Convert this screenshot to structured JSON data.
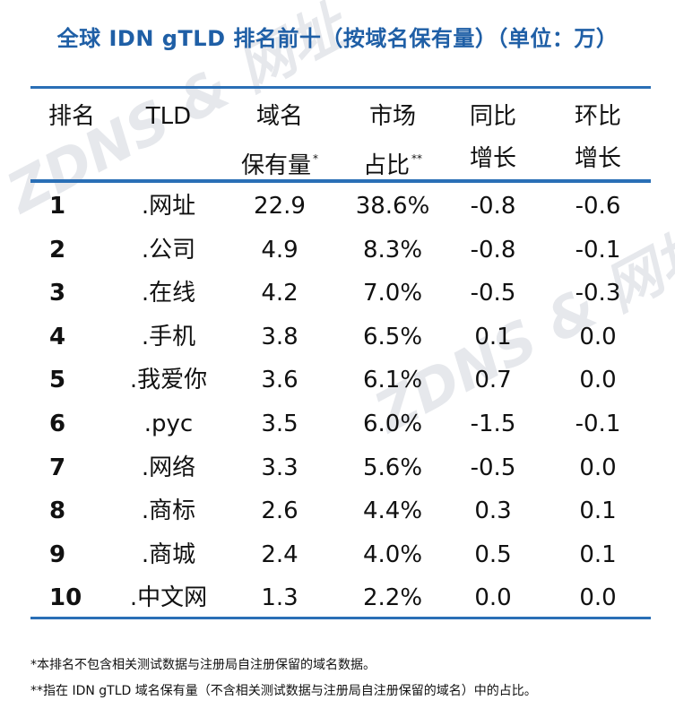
{
  "chart_data": {
    "type": "table",
    "title": "全球 IDN gTLD 排名前十（按域名保有量）（单位：万）",
    "columns": [
      {
        "line1": "排名",
        "line2": "",
        "mark": ""
      },
      {
        "line1": "TLD",
        "line2": "",
        "mark": ""
      },
      {
        "line1": "域名",
        "line2": "保有量",
        "mark": "*"
      },
      {
        "line1": "市场",
        "line2": "占比",
        "mark": "**"
      },
      {
        "line1": "同比",
        "line2": "增长",
        "mark": ""
      },
      {
        "line1": "环比",
        "line2": "增长",
        "mark": ""
      }
    ],
    "rows": [
      {
        "rank": "1",
        "tld": ".网址",
        "holdings": "22.9",
        "share": "38.6%",
        "yoy": "-0.8",
        "mom": "-0.6"
      },
      {
        "rank": "2",
        "tld": ".公司",
        "holdings": "4.9",
        "share": "8.3%",
        "yoy": "-0.8",
        "mom": "-0.1"
      },
      {
        "rank": "3",
        "tld": ".在线",
        "holdings": "4.2",
        "share": "7.0%",
        "yoy": "-0.5",
        "mom": "-0.3"
      },
      {
        "rank": "4",
        "tld": ".手机",
        "holdings": "3.8",
        "share": "6.5%",
        "yoy": "0.1",
        "mom": "0.0"
      },
      {
        "rank": "5",
        "tld": ".我爱你",
        "holdings": "3.6",
        "share": "6.1%",
        "yoy": "0.7",
        "mom": "0.0"
      },
      {
        "rank": "6",
        "tld": ".рус",
        "holdings": "3.5",
        "share": "6.0%",
        "yoy": "-1.5",
        "mom": "-0.1"
      },
      {
        "rank": "7",
        "tld": ".网络",
        "holdings": "3.3",
        "share": "5.6%",
        "yoy": "-0.5",
        "mom": "0.0"
      },
      {
        "rank": "8",
        "tld": ".商标",
        "holdings": "2.6",
        "share": "4.4%",
        "yoy": "0.3",
        "mom": "0.1"
      },
      {
        "rank": "9",
        "tld": ".商城",
        "holdings": "2.4",
        "share": "4.0%",
        "yoy": "0.5",
        "mom": "0.1"
      },
      {
        "rank": "10",
        "tld": ".中文网",
        "holdings": "1.3",
        "share": "2.2%",
        "yoy": "0.0",
        "mom": "0.0"
      }
    ],
    "notes": [
      "*本排名不包含相关测试数据与注册局自注册保留的域名数据。",
      "**指在 IDN gTLD 域名保有量（不含相关测试数据与注册局自注册保留的域名）中的占比。"
    ],
    "watermark": "ZDNS & 网址"
  },
  "colors": {
    "title": "#1f5fa6",
    "rule": "#2a6fb6",
    "text": "#111111",
    "watermark": "#e6e8ec"
  }
}
